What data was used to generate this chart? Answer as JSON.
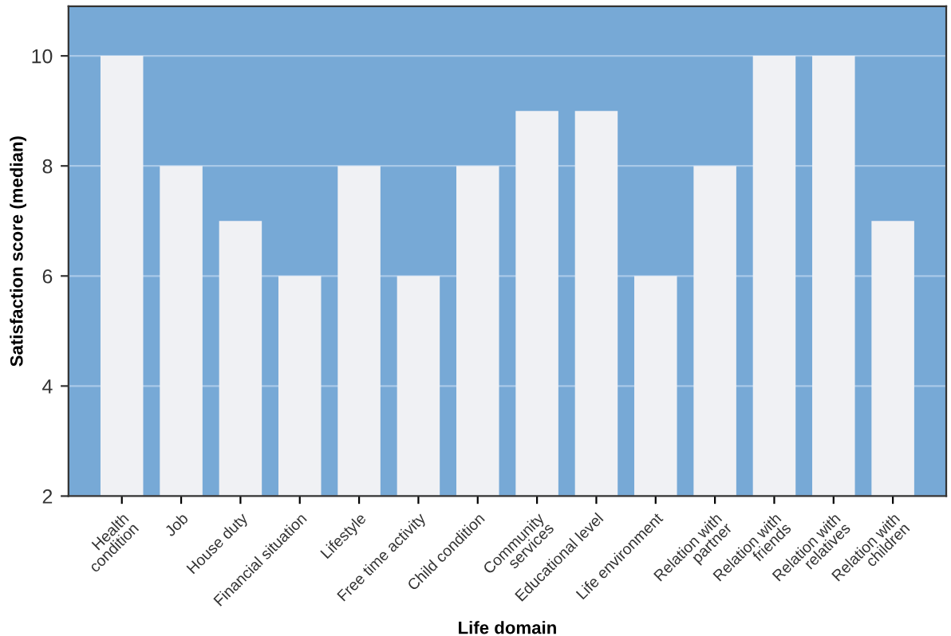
{
  "chart_data": {
    "type": "bar",
    "xlabel": "Life domain",
    "ylabel": "Satisfaction score (median)",
    "categories": [
      "Health\ncondition",
      "Job",
      "House duty",
      "Financial situation",
      "Lifestyle",
      "Free time activity",
      "Child condition",
      "Community\nservices",
      "Educational level",
      "Life environment",
      "Relation with\npartner",
      "Relation with\nfriends",
      "Relation with\nrelatives",
      "Relation with\nchildren"
    ],
    "values": [
      10,
      8,
      7,
      6,
      8,
      6,
      8,
      9,
      9,
      6,
      8,
      10,
      10,
      7
    ],
    "color": "#f0f1f4",
    "ylim": [
      2,
      10.9
    ],
    "yticks": [
      2,
      4,
      6,
      8,
      10
    ],
    "grid": "y"
  }
}
